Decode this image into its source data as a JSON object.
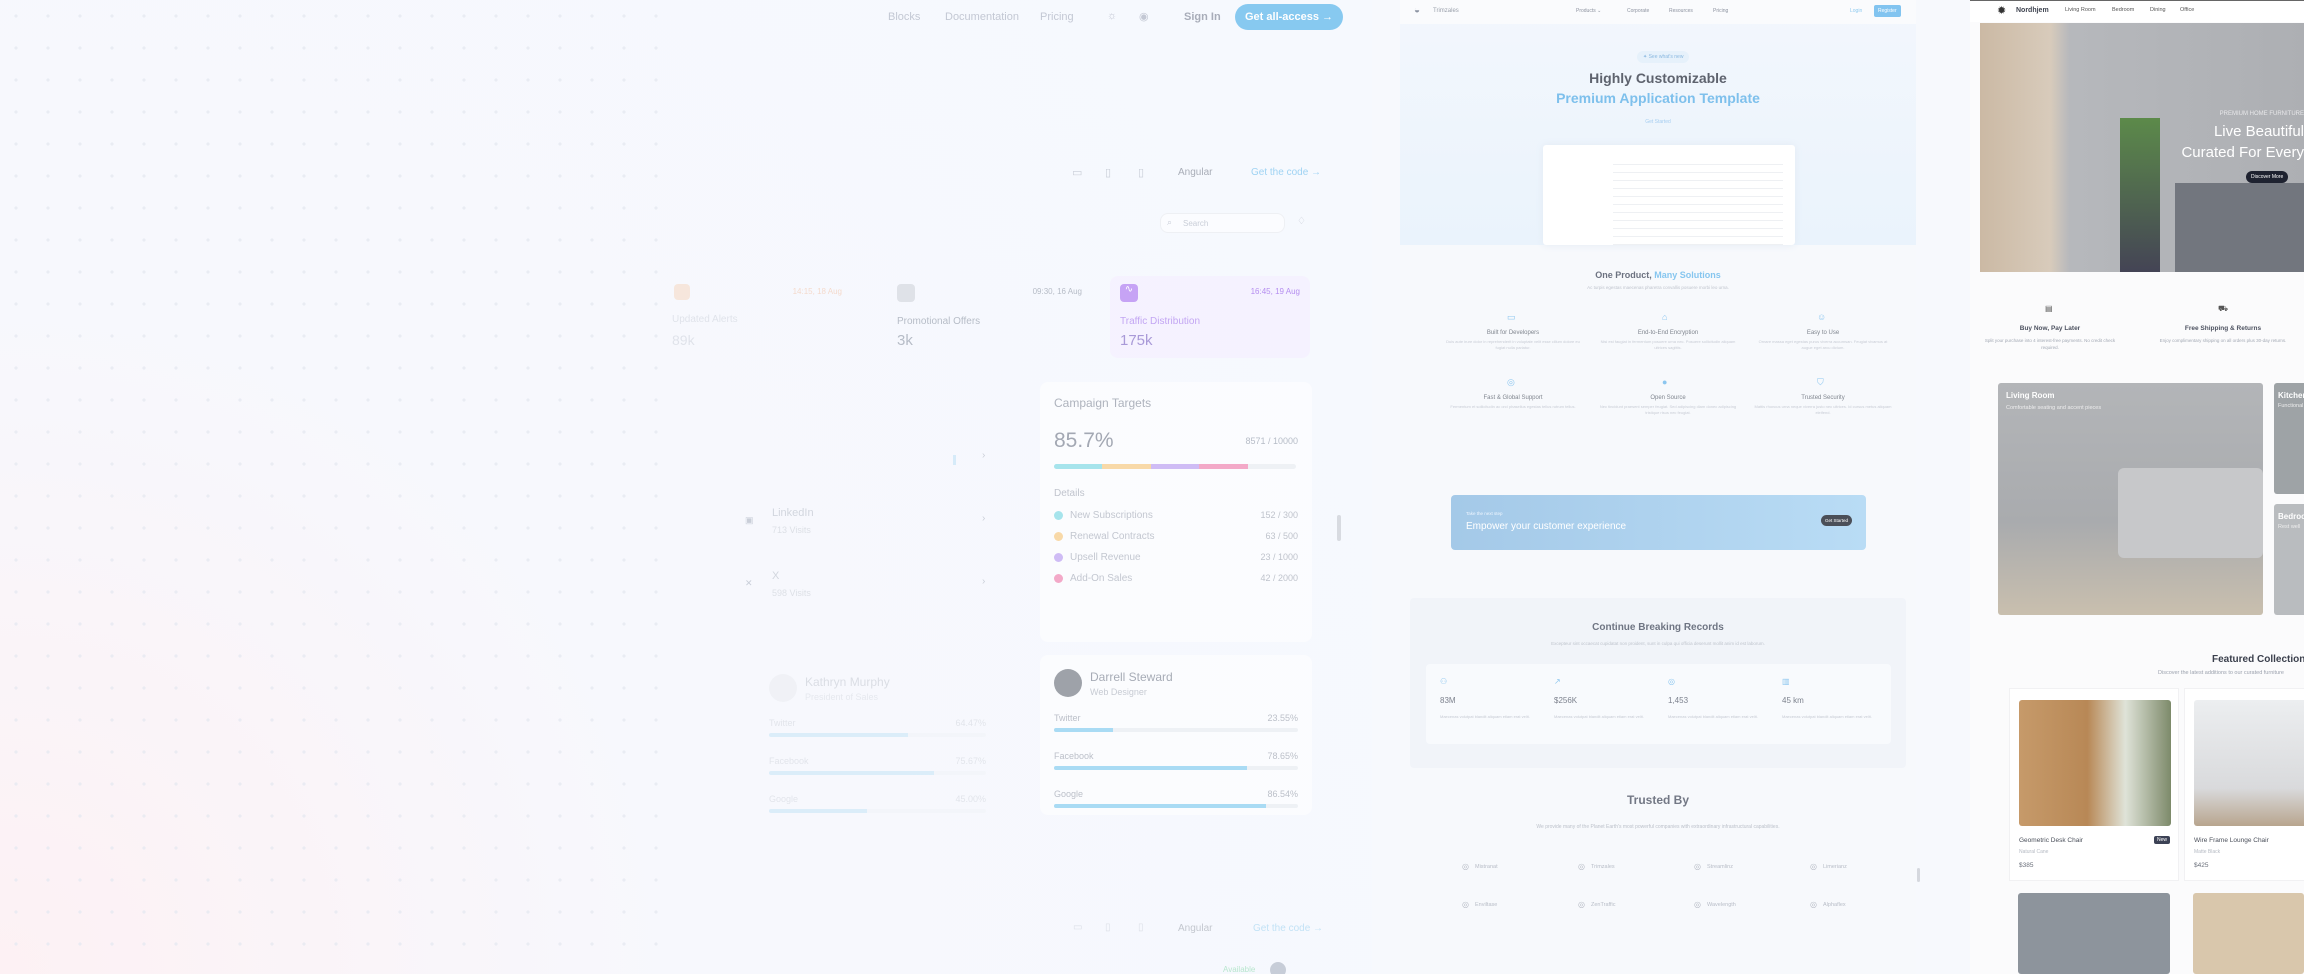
{
  "left": {
    "nav": {
      "items": [
        "Blocks",
        "Documentation",
        "Pricing"
      ],
      "sign_in": "Sign In",
      "cta": "Get all-access →",
      "icons": [
        "sun-icon",
        "github-icon"
      ]
    },
    "toolbar": {
      "framework": "Angular",
      "get_code": "Get the code →"
    },
    "search": {
      "placeholder": "Search"
    },
    "stats": [
      {
        "time": "14:15, 18 Aug",
        "label": "Updated Alerts",
        "value": "89k",
        "color": "#f5c7a0"
      },
      {
        "time": "09:30, 16 Aug",
        "label": "Promotional Offers",
        "value": "3k",
        "color": "#b9bec8"
      },
      {
        "time": "16:45, 19 Aug",
        "label": "Traffic Distribution",
        "value": "175k",
        "color": "#c6a3f5"
      }
    ],
    "social": [
      {
        "name": "LinkedIn",
        "visits": "713 Visits"
      },
      {
        "name": "X",
        "visits": "598 Visits"
      }
    ],
    "campaign": {
      "title": "Campaign Targets",
      "percent": "85.7%",
      "total": "8571 / 10000",
      "details_label": "Details",
      "segments": [
        {
          "color": "#a6e4ec",
          "fraction": 0.2
        },
        {
          "color": "#f8d9a8",
          "fraction": 0.2
        },
        {
          "color": "#cfbcf5",
          "fraction": 0.2
        },
        {
          "color": "#f3a9c8",
          "fraction": 0.2
        }
      ],
      "items": [
        {
          "label": "New Subscriptions",
          "value": "152 / 300",
          "color": "#a6e4ec"
        },
        {
          "label": "Renewal Contracts",
          "value": "63 / 500",
          "color": "#f8d9a8"
        },
        {
          "label": "Upsell Revenue",
          "value": "23 / 1000",
          "color": "#cfbcf5"
        },
        {
          "label": "Add-On Sales",
          "value": "42 / 2000",
          "color": "#f3a9c8"
        }
      ]
    },
    "profiles": [
      {
        "name": "Kathryn Murphy",
        "role": "President of Sales",
        "rows": [
          {
            "label": "Twitter",
            "value": "64.47%",
            "fill": 0.64
          },
          {
            "label": "Facebook",
            "value": "75.67%",
            "fill": 0.76
          },
          {
            "label": "Google",
            "value": "45.00%",
            "fill": 0.45
          }
        ]
      },
      {
        "name": "Darrell Steward",
        "role": "Web Designer",
        "rows": [
          {
            "label": "Twitter",
            "value": "23.55%",
            "fill": 0.24
          },
          {
            "label": "Facebook",
            "value": "78.65%",
            "fill": 0.79
          },
          {
            "label": "Google",
            "value": "86.54%",
            "fill": 0.87
          }
        ]
      }
    ],
    "bottom_toolbar": {
      "framework": "Angular",
      "get_code": "Get the code →",
      "status": "Available"
    }
  },
  "mid": {
    "nav": {
      "brand": "Trimzales",
      "items": [
        "Products ⌄",
        "Corporate",
        "Resources",
        "Pricing"
      ],
      "login": "Login",
      "register": "Register"
    },
    "hero": {
      "badge": "✦ See what's new",
      "title": "Highly Customizable",
      "subtitle": "Premium Application Template",
      "cta": "Get Started"
    },
    "features": {
      "title_a": "One Product, ",
      "title_b": "Many Solutions",
      "subtitle": "Ac turpis egestas maecenas pharetra convallis posuere morbi leo urna.",
      "items": [
        {
          "icon": "monitor-icon",
          "title": "Built for Developers",
          "desc": "Duis aute irure dolor in reprehenderit in voluptate velit esse cillum dolore eu fugiat nulla pariatur."
        },
        {
          "icon": "lock-icon",
          "title": "End-to-End Encryption",
          "desc": "Nisi est faugiat in fermentum posuere urna nec. Posuere sollicitudin aliquam ultrices sagittis."
        },
        {
          "icon": "smile-icon",
          "title": "Easy to Use",
          "desc": "Ornare massa eget egestas purus viverra accumsan. Feugiat vivamus at augue eget arcu dictum."
        },
        {
          "icon": "globe-icon",
          "title": "Fast & Global Support",
          "desc": "Fermentum et sollicitudin ac orci phasellus egestas tellus rutrum tellus."
        },
        {
          "icon": "github-icon",
          "title": "Open Source",
          "desc": "Nec tincidunt praesent semper feugiat. Sed adipiscing diam donec adipiscing tristique risus nec feugiat."
        },
        {
          "icon": "shield-icon",
          "title": "Trusted Security",
          "desc": "Mattis rhoncus urna neque viverra justo nec ultrices. Id cursus metus aliquam eleifend."
        }
      ]
    },
    "cta": {
      "kicker": "Take the next step",
      "title": "Empower your customer experience",
      "button": "Get Started"
    },
    "records": {
      "title": "Continue Breaking Records",
      "subtitle": "Excepteur sint occaecat cupidatat non proident, sunt in culpa qui officia deserunt mollit anim id est laborum.",
      "items": [
        {
          "icon": "users-icon",
          "value": "83M",
          "desc": "Maecenas volutpat blandit aliquam etiam erat velit."
        },
        {
          "icon": "chart-icon",
          "value": "$256K",
          "desc": "Maecenas volutpat blandit aliquam etiam erat velit."
        },
        {
          "icon": "globe-icon",
          "value": "1,453",
          "desc": "Maecenas volutpat blandit aliquam etiam erat velit."
        },
        {
          "icon": "map-icon",
          "value": "45 km",
          "desc": "Maecenas volutpat blandit aliquam etiam erat velit."
        }
      ]
    },
    "trusted": {
      "title": "Trusted By",
      "subtitle": "We provide many of the Planet Earth's most powerful companies with extraordinary infrastructural capabilities.",
      "logos": [
        "Mistranat",
        "Trimzales",
        "Streamlinz",
        "Limerianz",
        "Enviltase",
        "ZenTraffic",
        "Wavelength",
        "Alphaflex"
      ]
    }
  },
  "right": {
    "nav": {
      "brand": "Nordhjem",
      "items": [
        "Living Room",
        "Bedroom",
        "Dining",
        "Office"
      ]
    },
    "hero": {
      "kicker": "PREMIUM HOME FURNITURE",
      "title_1": "Live Beautiful",
      "title_2": "Curated For Every",
      "cta": "Discover More"
    },
    "features": [
      {
        "icon": "calendar-icon",
        "title": "Buy Now, Pay Later",
        "desc": "Split your purchase into 4 interest-free payments. No credit check required."
      },
      {
        "icon": "truck-icon",
        "title": "Free Shipping & Returns",
        "desc": "Enjoy complimentary shipping on all orders plus 30-day returns."
      }
    ],
    "categories": [
      {
        "title": "Living Room",
        "desc": "Comfortable seating and accent pieces"
      },
      {
        "title": "Kitchen",
        "desc": "Functional"
      },
      {
        "title": "Bedroom",
        "desc": "Rest well"
      }
    ],
    "featured": {
      "title": "Featured Collection",
      "subtitle": "Discover the latest additions to our curated furniture",
      "products": [
        {
          "name": "Geometric Desk Chair",
          "variant": "Natural Cane",
          "price": "$385",
          "badge": "New"
        },
        {
          "name": "Wire Frame Lounge Chair",
          "variant": "Matte Black",
          "price": "$425"
        }
      ]
    }
  }
}
